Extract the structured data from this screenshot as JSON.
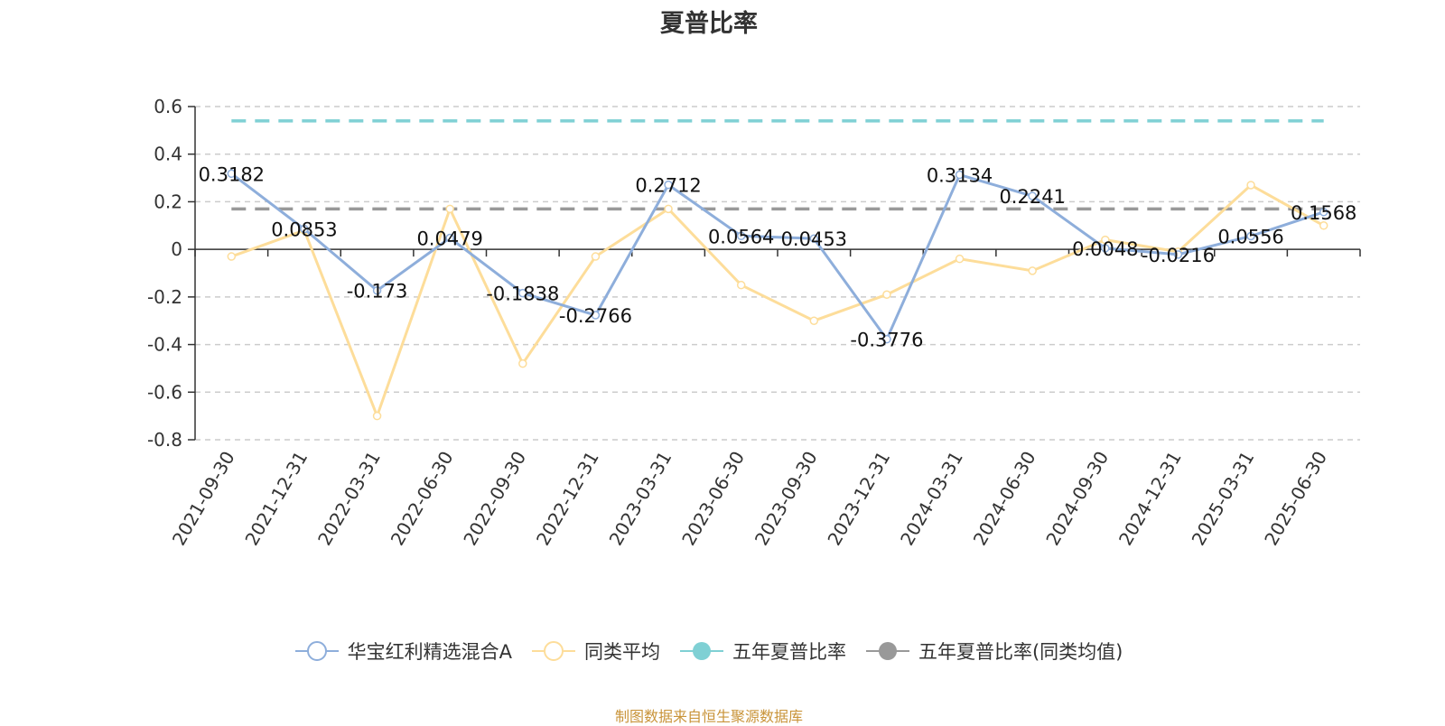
{
  "chart_data": {
    "type": "line",
    "title": "夏普比率",
    "categories": [
      "2021-09-30",
      "2021-12-31",
      "2022-03-31",
      "2022-06-30",
      "2022-09-30",
      "2022-12-31",
      "2023-03-31",
      "2023-06-30",
      "2023-09-30",
      "2023-12-31",
      "2024-03-31",
      "2024-06-30",
      "2024-09-30",
      "2024-12-31",
      "2025-03-31",
      "2025-06-30"
    ],
    "ylim": [
      -0.8,
      0.6
    ],
    "yticks": [
      0.6,
      0.4,
      0.2,
      0,
      -0.2,
      -0.4,
      -0.6,
      -0.8
    ],
    "grid": true,
    "legend_position": "bottom",
    "series": [
      {
        "name": "华宝红利精选混合A",
        "color": "#8eaedb",
        "values": [
          0.3182,
          0.0853,
          -0.173,
          0.0479,
          -0.1838,
          -0.2766,
          0.2712,
          0.0564,
          0.0453,
          -0.3776,
          0.3134,
          0.2241,
          0.0048,
          -0.0216,
          0.0556,
          0.1568
        ],
        "labels": [
          "0.3182",
          "0.0853",
          "-0.173",
          "0.0479",
          "-0.1838",
          "-0.2766",
          "0.2712",
          "0.0564",
          "0.0453",
          "-0.3776",
          "0.3134",
          "0.2241",
          "0.0048",
          "-0.0216",
          "0.0556",
          "0.1568"
        ]
      },
      {
        "name": "同类平均",
        "color": "#fddd9a",
        "values": [
          -0.03,
          0.08,
          -0.7,
          0.17,
          -0.48,
          -0.03,
          0.17,
          -0.15,
          -0.3,
          -0.19,
          -0.04,
          -0.09,
          0.04,
          -0.01,
          0.27,
          0.1
        ]
      },
      {
        "name": "五年夏普比率",
        "color": "#7fd0d4",
        "constant": 0.54
      },
      {
        "name": "五年夏普比率(同类均值)",
        "color": "#999999",
        "constant": 0.17
      }
    ]
  },
  "source_note": "制图数据来自恒生聚源数据库"
}
